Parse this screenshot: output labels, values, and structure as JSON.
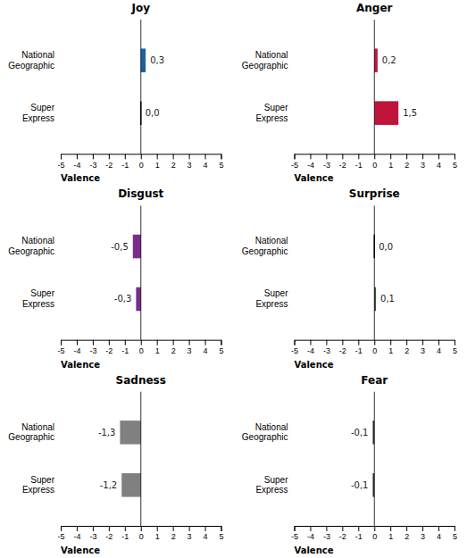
{
  "chart_data": [
    {
      "type": "bar",
      "orientation": "horizontal",
      "title": "Joy",
      "categories": [
        "National\nGeographic",
        "Super\nExpress"
      ],
      "values": [
        0.3,
        0.0
      ],
      "value_labels": [
        "0,3",
        "0,0"
      ],
      "color": "#1F5FA6",
      "xlabel": "Valence",
      "xlim": [
        -5,
        5
      ],
      "xticks": [
        -5,
        -4,
        -3,
        -2,
        -1,
        0,
        1,
        2,
        3,
        4,
        5
      ],
      "grid": false
    },
    {
      "type": "bar",
      "orientation": "horizontal",
      "title": "Anger",
      "categories": [
        "National\nGeographic",
        "Super\nExpress"
      ],
      "values": [
        0.2,
        1.5
      ],
      "value_labels": [
        "0,2",
        "1,5"
      ],
      "color": "#C0143C",
      "xlabel": "Valence",
      "xlim": [
        -5,
        5
      ],
      "xticks": [
        -5,
        -4,
        -3,
        -2,
        -1,
        0,
        1,
        2,
        3,
        4,
        5
      ],
      "grid": false
    },
    {
      "type": "bar",
      "orientation": "horizontal",
      "title": "Disgust",
      "categories": [
        "National\nGeographic",
        "Super\nExpress"
      ],
      "values": [
        -0.5,
        -0.3
      ],
      "value_labels": [
        "-0,5",
        "-0,3"
      ],
      "color": "#7B2D8B",
      "xlabel": "Valence",
      "xlim": [
        -5,
        5
      ],
      "xticks": [
        -5,
        -4,
        -3,
        -2,
        -1,
        0,
        1,
        2,
        3,
        4,
        5
      ],
      "grid": false
    },
    {
      "type": "bar",
      "orientation": "horizontal",
      "title": "Surprise",
      "categories": [
        "National\nGeographic",
        "Super\nExpress"
      ],
      "values": [
        0.0,
        0.1
      ],
      "value_labels": [
        "0,0",
        "0,1"
      ],
      "color": "#2D5A2D",
      "xlabel": "Valence",
      "xlim": [
        -5,
        5
      ],
      "xticks": [
        -5,
        -4,
        -3,
        -2,
        -1,
        0,
        1,
        2,
        3,
        4,
        5
      ],
      "grid": false
    },
    {
      "type": "bar",
      "orientation": "horizontal",
      "title": "Sadness",
      "categories": [
        "National\nGeographic",
        "Super\nExpress"
      ],
      "values": [
        -1.3,
        -1.2
      ],
      "value_labels": [
        "-1,3",
        "-1,2"
      ],
      "color": "#808080",
      "xlabel": "Valence",
      "xlim": [
        -5,
        5
      ],
      "xticks": [
        -5,
        -4,
        -3,
        -2,
        -1,
        0,
        1,
        2,
        3,
        4,
        5
      ],
      "grid": false
    },
    {
      "type": "bar",
      "orientation": "horizontal",
      "title": "Fear",
      "categories": [
        "National\nGeographic",
        "Super\nExpress"
      ],
      "values": [
        -0.1,
        -0.1
      ],
      "value_labels": [
        "-0,1",
        "-0,1"
      ],
      "color": "#333333",
      "xlabel": "Valence",
      "xlim": [
        -5,
        5
      ],
      "xticks": [
        -5,
        -4,
        -3,
        -2,
        -1,
        0,
        1,
        2,
        3,
        4,
        5
      ],
      "grid": false
    }
  ]
}
